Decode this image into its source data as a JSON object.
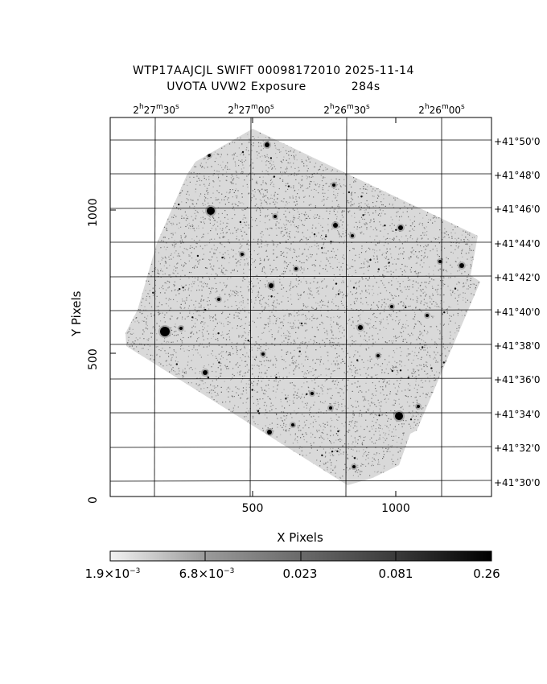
{
  "title": {
    "line1": "WTP17AAJCJL SWIFT 00098172010 2025-11-14",
    "line2_left": "UVOTA UVW2 Exposure",
    "line2_right": "284s"
  },
  "axes": {
    "xlabel": "X Pixels",
    "ylabel": "Y Pixels",
    "x_ticks": [
      "500",
      "1000"
    ],
    "y_ticks": [
      "0",
      "500",
      "1000"
    ]
  },
  "ra_ticks": [
    {
      "h": "2",
      "m": "27",
      "s": "30"
    },
    {
      "h": "2",
      "m": "27",
      "s": "00"
    },
    {
      "h": "2",
      "m": "26",
      "s": "30"
    },
    {
      "h": "2",
      "m": "26",
      "s": "00"
    }
  ],
  "dec_ticks": [
    "+41°50'0",
    "+41°48'0",
    "+41°46'0",
    "+41°44'0",
    "+41°42'0",
    "+41°40'0",
    "+41°38'0",
    "+41°36'0",
    "+41°34'0",
    "+41°32'0",
    "+41°30'0"
  ],
  "colorbar": {
    "labels": [
      "1.9×10",
      "6.8×10",
      "0.023",
      "0.081",
      "0.26"
    ],
    "exponent": "−3"
  },
  "image": {
    "description_free": "",
    "background_color": "#ffffff",
    "noise_color": "#8a8a8a",
    "star_color": "#000000"
  }
}
